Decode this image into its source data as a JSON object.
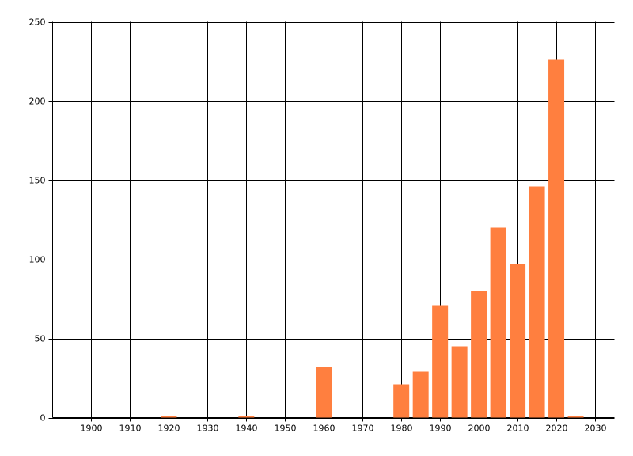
{
  "chart_data": {
    "type": "bar",
    "x": [
      1920,
      1940,
      1960,
      1980,
      1985,
      1990,
      1995,
      2000,
      2005,
      2010,
      2015,
      2020,
      2025
    ],
    "values": [
      1,
      1,
      32,
      21,
      29,
      71,
      45,
      80,
      120,
      97,
      146,
      226,
      1
    ],
    "color": "#ff7f3f",
    "xlim": [
      1890,
      2035
    ],
    "xticks": [
      1900,
      1910,
      1920,
      1930,
      1940,
      1950,
      1960,
      1970,
      1980,
      1990,
      2000,
      2010,
      2020,
      2030
    ],
    "ylim": [
      0,
      250
    ],
    "yticks": [
      0,
      50,
      100,
      150,
      200,
      250
    ],
    "grid": true
  }
}
